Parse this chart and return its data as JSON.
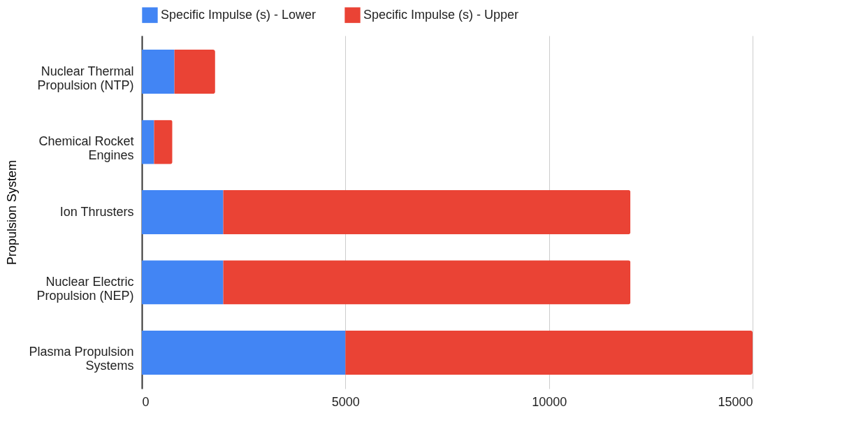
{
  "chart_data": {
    "type": "bar",
    "orientation": "horizontal",
    "stacked": true,
    "ylabel": "Propulsion System",
    "categories": [
      "Nuclear Thermal Propulsion (NTP)",
      "Chemical Rocket Engines",
      "Ion Thrusters",
      "Nuclear Electric Propulsion (NEP)",
      "Plasma Propulsion Systems"
    ],
    "series": [
      {
        "name": "Specific Impulse (s) - Lower",
        "color": "#4285f4",
        "values": [
          800,
          300,
          2000,
          2000,
          5000
        ]
      },
      {
        "name": "Specific Impulse (s) - Upper",
        "color": "#ea4335",
        "values": [
          1000,
          450,
          10000,
          10000,
          10000
        ]
      }
    ],
    "xlim": [
      0,
      15000
    ],
    "xticks": [
      0,
      5000,
      10000,
      15000
    ],
    "grid": "x",
    "legend": "top"
  }
}
